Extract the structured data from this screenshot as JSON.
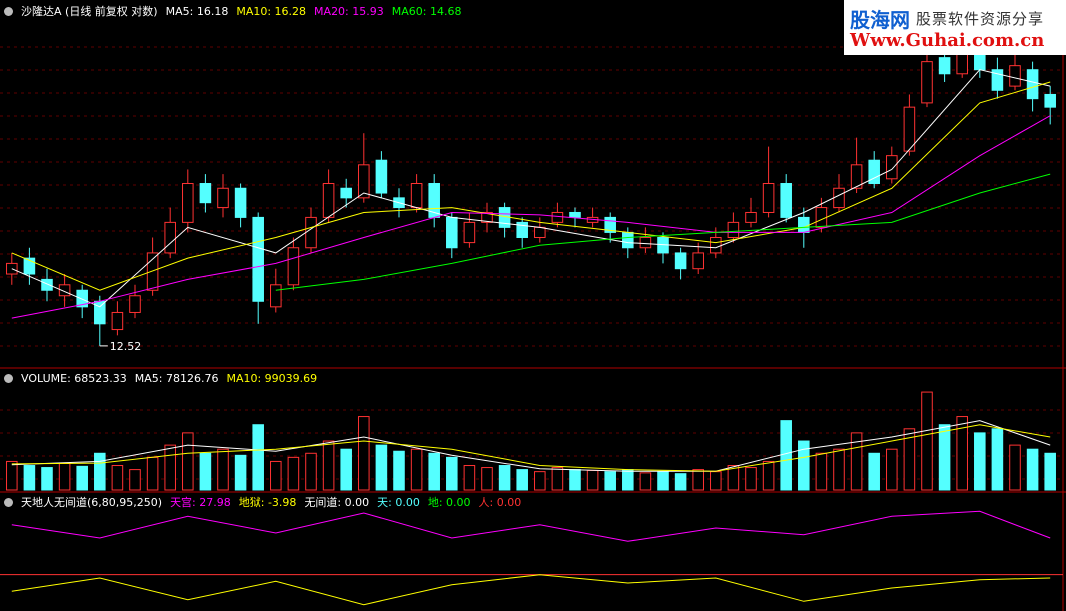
{
  "watermark": {
    "brand": "股海网",
    "slogan": "股票软件资源分享",
    "url": "Www.Guhai.com.cn"
  },
  "chart_data": [
    {
      "type": "candlestick",
      "title": "沙隆达A (日线 前复权 对数)",
      "log_scale": true,
      "xlim": [
        -0.5,
        59.5
      ],
      "ylim": [
        12.2,
        19.6
      ],
      "up_color": "#ff3232",
      "down_color": "#54ffff",
      "open": [
        13.8,
        14.1,
        13.7,
        13.4,
        13.5,
        13.3,
        12.8,
        13.1,
        13.5,
        14.2,
        14.8,
        15.6,
        15.1,
        15.5,
        14.9,
        13.2,
        13.6,
        14.3,
        14.9,
        15.5,
        15.3,
        16.1,
        15.3,
        15.1,
        15.6,
        14.9,
        14.4,
        14.8,
        15.1,
        14.8,
        14.5,
        14.8,
        15.0,
        14.8,
        14.9,
        14.6,
        14.3,
        14.5,
        14.2,
        13.9,
        14.2,
        14.5,
        14.8,
        15.0,
        15.6,
        14.9,
        14.7,
        15.1,
        15.5,
        16.1,
        15.7,
        16.3,
        17.4,
        18.5,
        18.1,
        18.7,
        18.2,
        17.8,
        18.2,
        17.6
      ],
      "high": [
        14.2,
        14.3,
        13.9,
        13.8,
        13.6,
        13.4,
        13.3,
        13.6,
        14.5,
        15.1,
        15.9,
        15.8,
        15.8,
        15.6,
        15.0,
        13.9,
        14.5,
        15.1,
        15.9,
        15.7,
        16.7,
        16.3,
        15.5,
        15.8,
        15.8,
        15.0,
        15.0,
        15.2,
        15.2,
        14.9,
        14.9,
        15.2,
        15.1,
        15.1,
        15.0,
        14.7,
        14.7,
        14.6,
        14.3,
        14.4,
        14.7,
        15.0,
        15.3,
        16.4,
        15.8,
        15.1,
        15.3,
        15.8,
        16.6,
        16.3,
        16.4,
        17.6,
        18.8,
        18.9,
        19.0,
        19.0,
        18.5,
        18.6,
        18.4,
        17.8
      ],
      "low": [
        13.6,
        13.6,
        13.3,
        13.2,
        13.0,
        12.52,
        12.7,
        13.0,
        13.4,
        14.1,
        14.6,
        15.0,
        14.9,
        14.7,
        12.9,
        13.1,
        13.5,
        14.2,
        14.8,
        15.1,
        15.2,
        15.3,
        14.9,
        15.0,
        14.7,
        14.1,
        14.3,
        14.6,
        14.5,
        14.3,
        14.4,
        14.7,
        14.7,
        14.7,
        14.4,
        14.1,
        14.2,
        14.0,
        13.7,
        13.8,
        14.1,
        14.4,
        14.7,
        14.9,
        14.8,
        14.3,
        14.6,
        15.0,
        15.4,
        15.5,
        15.6,
        16.2,
        17.3,
        17.9,
        18.0,
        18.0,
        17.5,
        17.7,
        17.2,
        16.9
      ],
      "close": [
        14.0,
        13.8,
        13.5,
        13.6,
        13.2,
        12.9,
        13.1,
        13.4,
        14.2,
        14.8,
        15.6,
        15.2,
        15.5,
        14.9,
        13.3,
        13.6,
        14.3,
        14.9,
        15.6,
        15.3,
        16.0,
        15.4,
        15.1,
        15.6,
        14.9,
        14.3,
        14.8,
        15.0,
        14.7,
        14.5,
        14.7,
        15.0,
        14.9,
        14.9,
        14.6,
        14.3,
        14.5,
        14.2,
        13.9,
        14.2,
        14.5,
        14.8,
        15.0,
        15.6,
        14.9,
        14.6,
        15.1,
        15.5,
        16.0,
        15.6,
        16.2,
        17.3,
        18.4,
        18.1,
        18.6,
        18.2,
        17.7,
        18.3,
        17.5,
        17.3
      ],
      "annotation": "12.52",
      "overlays": {
        "x": [
          0,
          5,
          10,
          15,
          20,
          25,
          30,
          35,
          40,
          45,
          50,
          55,
          59
        ],
        "series": [
          {
            "name": "MA5: 16.18",
            "color": "#ffffff",
            "values": [
              13.9,
              13.2,
              14.7,
              14.2,
              15.4,
              14.9,
              14.7,
              14.4,
              14.3,
              15.0,
              15.9,
              18.2,
              17.8
            ]
          },
          {
            "name": "MA10: 16.28",
            "color": "#ffff00",
            "values": [
              14.2,
              13.5,
              14.1,
              14.5,
              15.0,
              15.1,
              14.8,
              14.6,
              14.4,
              14.7,
              15.5,
              17.4,
              17.9
            ]
          },
          {
            "name": "MA20: 15.93",
            "color": "#ff00ff",
            "values": [
              13.0,
              13.3,
              13.7,
              14.0,
              14.5,
              15.0,
              14.95,
              14.8,
              14.6,
              14.6,
              15.0,
              16.2,
              17.1
            ]
          },
          {
            "name": "MA60: 14.68",
            "color": "#00ff00",
            "values": [
              null,
              null,
              null,
              13.5,
              13.7,
              14.0,
              14.35,
              14.5,
              14.6,
              14.7,
              14.8,
              15.4,
              15.8
            ]
          }
        ]
      }
    },
    {
      "type": "bar",
      "title": "VOLUME: 68523.33",
      "xlim": [
        -0.5,
        59.5
      ],
      "ylim": [
        0,
        250000
      ],
      "values": [
        70000,
        60000,
        55000,
        65000,
        58000,
        90000,
        60000,
        50000,
        80000,
        110000,
        140000,
        90000,
        100000,
        85000,
        160000,
        70000,
        80000,
        90000,
        120000,
        100000,
        180000,
        110000,
        95000,
        100000,
        90000,
        80000,
        60000,
        55000,
        60000,
        50000,
        45000,
        55000,
        50000,
        48000,
        45000,
        50000,
        42000,
        45000,
        40000,
        50000,
        45000,
        60000,
        55000,
        70000,
        170000,
        120000,
        90000,
        100000,
        140000,
        90000,
        100000,
        150000,
        240000,
        160000,
        180000,
        140000,
        150000,
        110000,
        100000,
        90000
      ],
      "overlays": {
        "x": [
          0,
          5,
          10,
          15,
          20,
          25,
          30,
          35,
          40,
          45,
          50,
          55,
          59
        ],
        "series": [
          {
            "name": "MA5: 78126.76",
            "color": "#ffffff",
            "values": [
              62000,
              70000,
              110000,
              95000,
              130000,
              85000,
              52000,
              46000,
              46000,
              100000,
              130000,
              170000,
              110000
            ]
          },
          {
            "name": "MA10: 99039.69",
            "color": "#ffff00",
            "values": [
              64000,
              66000,
              90000,
              100000,
              120000,
              100000,
              60000,
              50000,
              46000,
              80000,
              120000,
              160000,
              130000
            ]
          }
        ]
      }
    },
    {
      "type": "line",
      "title": "天地人无间道(6,80,95,250)",
      "xlim": [
        -0.5,
        59.5
      ],
      "ylim": [
        -20,
        40
      ],
      "reference_line": 0,
      "reference_color": "#ff3232",
      "x": [
        0,
        5,
        10,
        15,
        20,
        25,
        30,
        35,
        40,
        45,
        50,
        55,
        59
      ],
      "series": [
        {
          "name": "天宫: 27.98",
          "color": "#ff00ff",
          "values": [
            30,
            22,
            35,
            25,
            37,
            22,
            30,
            20,
            28,
            24,
            35,
            38,
            22
          ]
        },
        {
          "name": "地狱: -3.98",
          "color": "#ffff00",
          "values": [
            -10,
            -2,
            -15,
            -4,
            -18,
            -6,
            0,
            -5,
            -2,
            -16,
            -8,
            -3,
            -2
          ]
        }
      ],
      "legend_extra": [
        {
          "name": "无间道: 0.00",
          "color": "#ffffff"
        },
        {
          "name": "天: 0.00",
          "color": "#54ffff"
        },
        {
          "name": "地: 0.00",
          "color": "#00ff00"
        },
        {
          "name": "人: 0.00",
          "color": "#ff3232"
        }
      ]
    }
  ]
}
